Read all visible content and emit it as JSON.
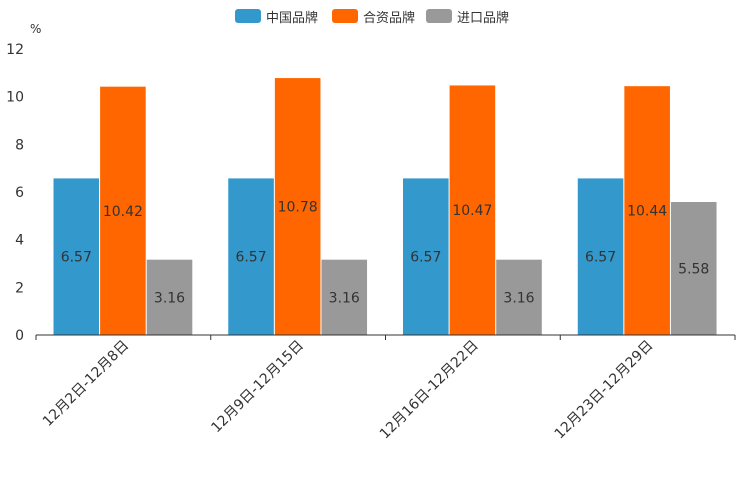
{
  "chart_data": {
    "type": "bar",
    "unit_label": "%",
    "categories": [
      "12月2日-12月8日",
      "12月9日-12月15日",
      "12月16日-12月22日",
      "12月23日-12月29日"
    ],
    "series": [
      {
        "name": "中国品牌",
        "color": "#3399cc",
        "values": [
          6.57,
          6.57,
          6.57,
          6.57
        ],
        "labels": [
          "6.57",
          "6.57",
          "6.57",
          "6.57"
        ]
      },
      {
        "name": "合资品牌",
        "color": "#ff6600",
        "values": [
          10.42,
          10.78,
          10.47,
          10.44
        ],
        "labels": [
          "10.42",
          "10.78",
          "10.47",
          "10.44"
        ]
      },
      {
        "name": "进口品牌",
        "color": "#999999",
        "values": [
          3.16,
          3.16,
          3.16,
          5.58
        ],
        "labels": [
          "3.16",
          "3.16",
          "3.16",
          "5.58"
        ]
      }
    ],
    "ylim": [
      0,
      12
    ],
    "yticks": [
      0,
      2,
      4,
      6,
      8,
      10,
      12
    ],
    "ytick_labels": [
      "0",
      "2",
      "4",
      "6",
      "8",
      "10",
      "12"
    ],
    "legend_position": "top-center",
    "grid": false
  }
}
